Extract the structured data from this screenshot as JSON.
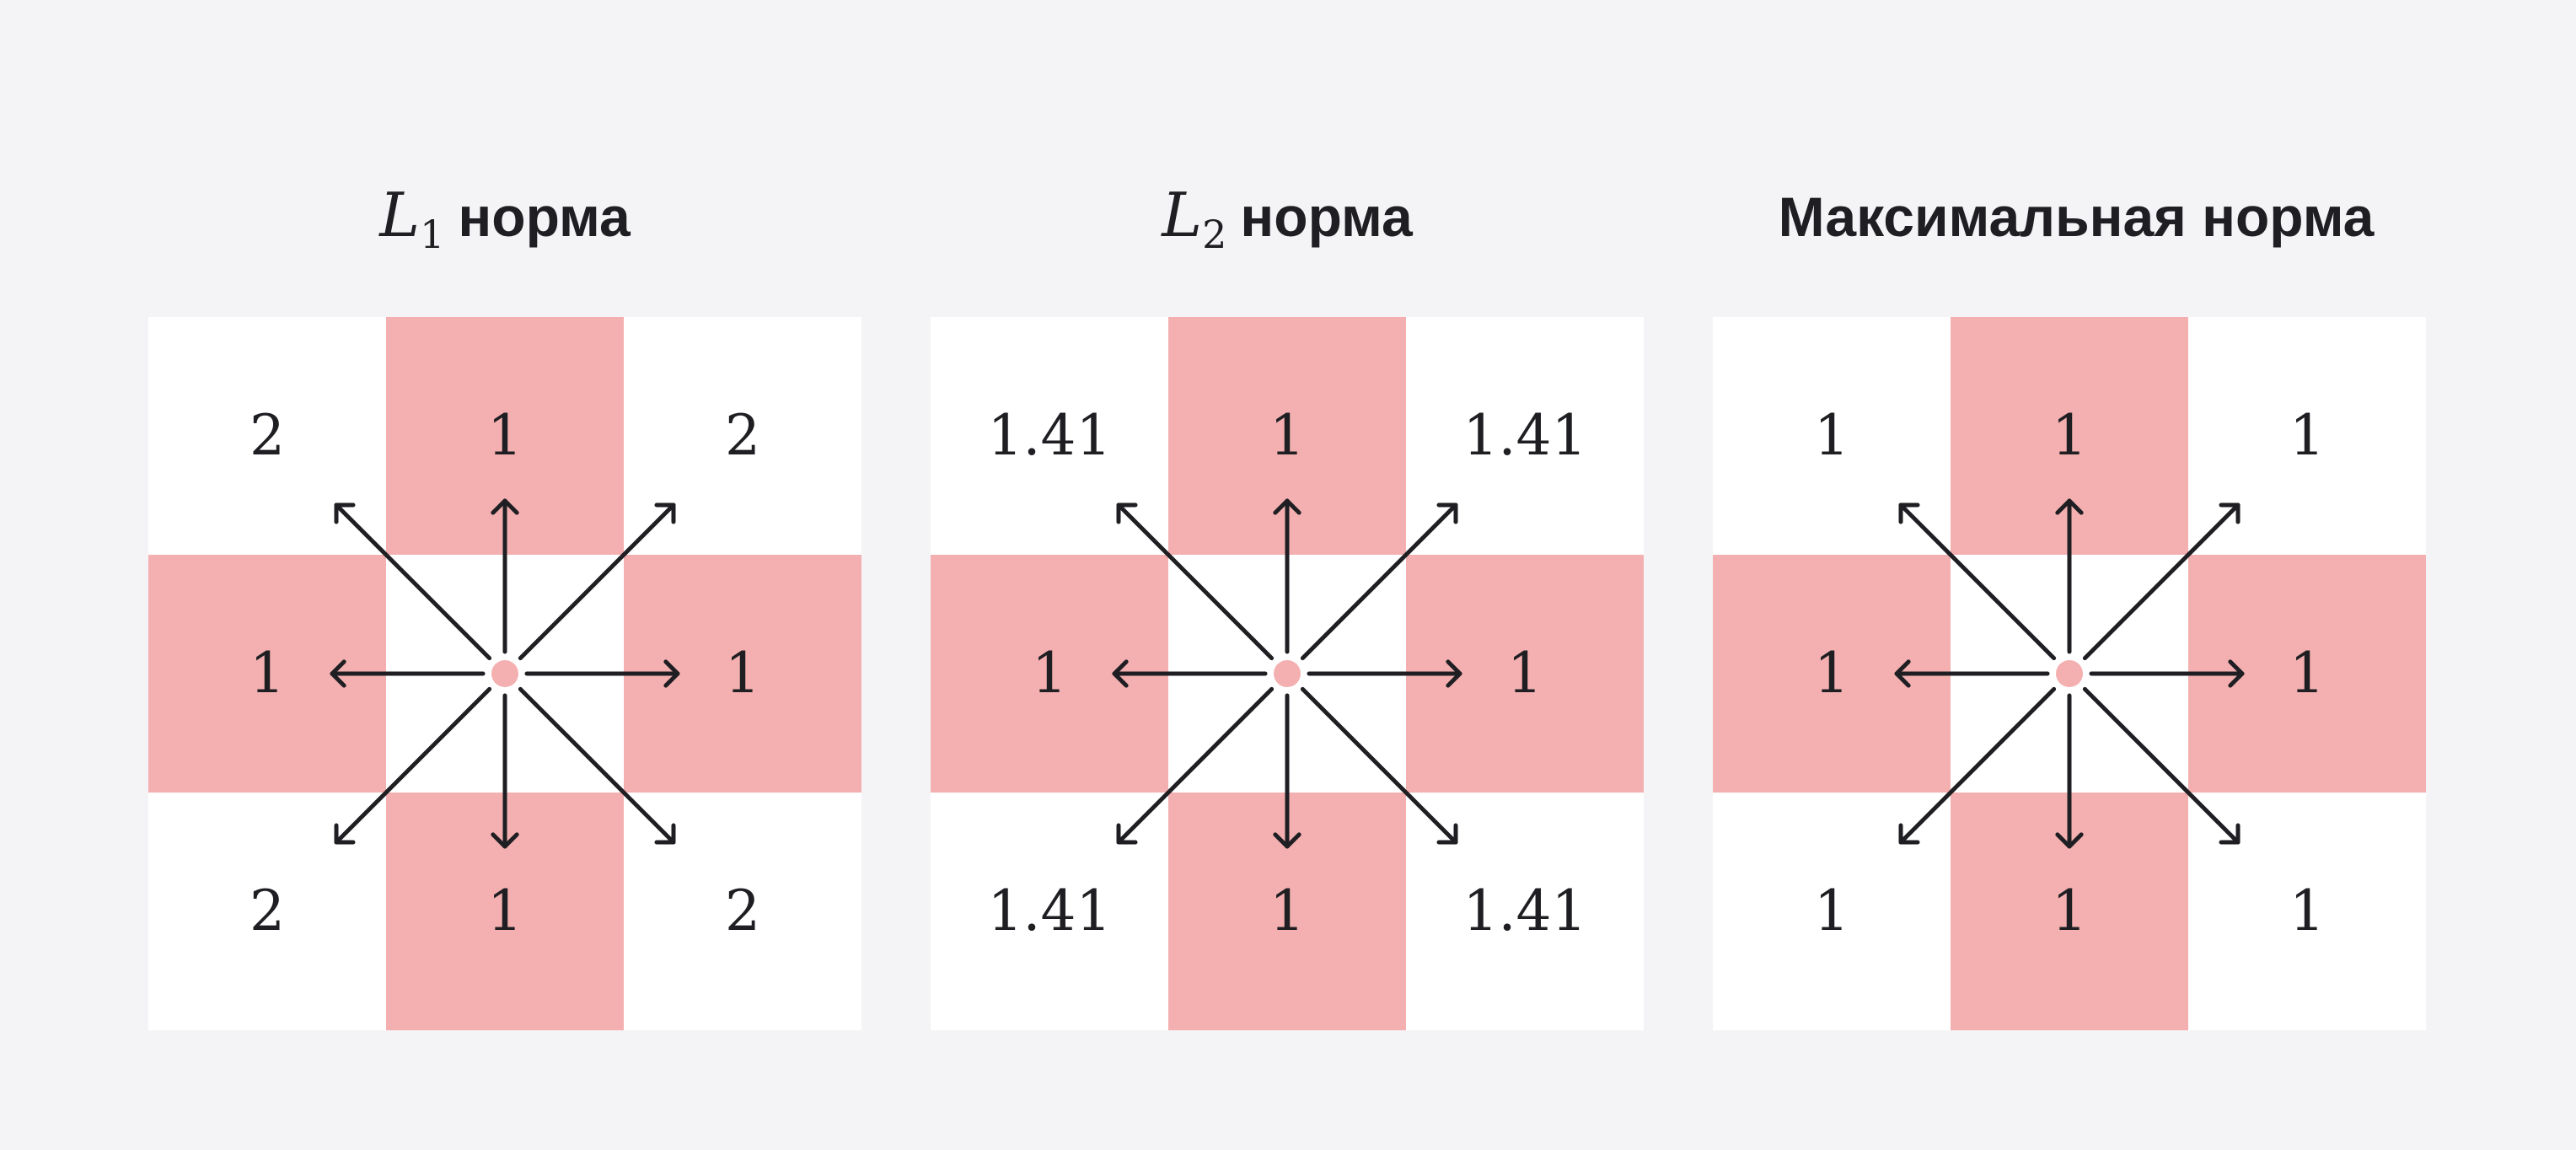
{
  "panels": [
    {
      "title_var": "L",
      "title_sub": "1",
      "title_text": "норма",
      "cells": [
        "2",
        "1",
        "2",
        "1",
        "",
        "1",
        "2",
        "1",
        "2"
      ]
    },
    {
      "title_var": "L",
      "title_sub": "2",
      "title_text": "норма",
      "cells": [
        "1.41",
        "1",
        "1.41",
        "1",
        "",
        "1",
        "1.41",
        "1",
        "1.41"
      ]
    },
    {
      "title_var": "",
      "title_sub": "",
      "title_text": "Максимальная норма",
      "cells": [
        "1",
        "1",
        "1",
        "1",
        "",
        "1",
        "1",
        "1",
        "1"
      ]
    }
  ],
  "colors": {
    "background": "#f4f4f6",
    "neighbor_cell": "#f4b0b0",
    "diagonal_cell": "#ffffff",
    "center_point": "#f4b0b0",
    "arrow": "#1f1f23",
    "text": "#1f1f23"
  }
}
